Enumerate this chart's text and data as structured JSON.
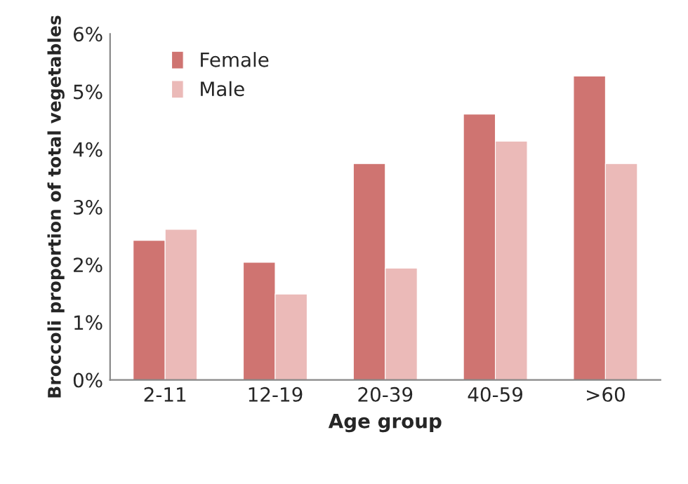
{
  "chart_data": {
    "type": "bar",
    "xlabel": "Age group",
    "ylabel": "Broccoli proportion of total vegetables",
    "categories": [
      "2-11",
      "12-19",
      "20-39",
      "40-59",
      ">60"
    ],
    "series": [
      {
        "name": "Female",
        "color": "#cf7471",
        "values": [
          2.42,
          2.04,
          3.75,
          4.61,
          5.27
        ]
      },
      {
        "name": "Male",
        "color": "#ebbab8",
        "values": [
          2.61,
          1.49,
          1.94,
          4.14,
          3.75
        ]
      }
    ],
    "ylim": [
      0,
      6
    ],
    "yticks": [
      {
        "value": 0,
        "label": "0%"
      },
      {
        "value": 1,
        "label": "1%"
      },
      {
        "value": 2,
        "label": "2%"
      },
      {
        "value": 3,
        "label": "3%"
      },
      {
        "value": 4,
        "label": "4%"
      },
      {
        "value": 5,
        "label": "5%"
      },
      {
        "value": 6,
        "label": "6%"
      }
    ],
    "grid": false,
    "legend": "top left"
  }
}
